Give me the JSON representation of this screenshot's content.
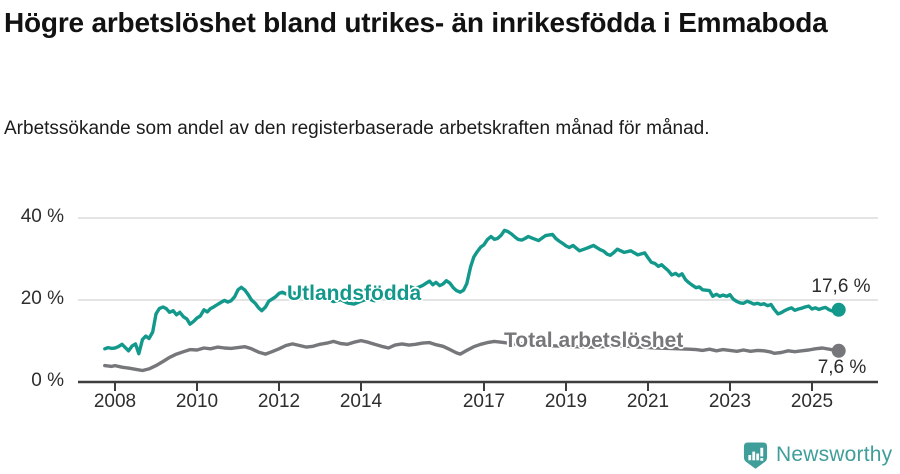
{
  "header": {
    "title": "Högre arbetslöshet bland utrikes- än inrikesfödda i Emmaboda",
    "subtitle": "Arbetssökande som andel av den registerbaserade arbetskraften månad för månad."
  },
  "chart_data": {
    "type": "line",
    "title": "Högre arbetslöshet bland utrikes- än inrikesfödda i Emmaboda",
    "subtitle": "Arbetssökande som andel av den registerbaserade arbetskraften månad för månad.",
    "grid": "horizontal",
    "legend_position": "inline-labels",
    "x_axis": {
      "range": [
        2007.7,
        2025.9
      ],
      "ticks": [
        2008,
        2010,
        2012,
        2014,
        2017,
        2019,
        2021,
        2023,
        2025
      ]
    },
    "y_axis": {
      "unit": "%",
      "range": [
        0,
        42
      ],
      "ticks": [
        {
          "value": 0,
          "label": "0 %"
        },
        {
          "value": 20,
          "label": "20 %"
        },
        {
          "value": 40,
          "label": "40 %"
        }
      ]
    },
    "colors": {
      "utlandsfodda": "#13998c",
      "total": "#76777a",
      "grid": "#dcdcdc",
      "axis": "#3d3d3d",
      "text": "#2e2e2e"
    },
    "series": [
      {
        "name": "Utlandsfödda",
        "color": "#13998c",
        "end_label": "17,6 %",
        "end_value": 17.6,
        "points": [
          [
            2007.75,
            8.1
          ],
          [
            2007.83,
            8.4
          ],
          [
            2007.92,
            8.2
          ],
          [
            2008.0,
            8.3
          ],
          [
            2008.08,
            8.6
          ],
          [
            2008.17,
            9.2
          ],
          [
            2008.25,
            8.4
          ],
          [
            2008.33,
            7.6
          ],
          [
            2008.42,
            8.8
          ],
          [
            2008.5,
            9.3
          ],
          [
            2008.58,
            6.9
          ],
          [
            2008.67,
            10.4
          ],
          [
            2008.75,
            11.2
          ],
          [
            2008.83,
            10.6
          ],
          [
            2008.92,
            12.2
          ],
          [
            2009.0,
            16.6
          ],
          [
            2009.08,
            17.9
          ],
          [
            2009.17,
            18.3
          ],
          [
            2009.25,
            17.9
          ],
          [
            2009.33,
            17.0
          ],
          [
            2009.42,
            17.4
          ],
          [
            2009.5,
            16.4
          ],
          [
            2009.58,
            17.0
          ],
          [
            2009.67,
            15.9
          ],
          [
            2009.75,
            15.4
          ],
          [
            2009.83,
            14.1
          ],
          [
            2009.92,
            14.8
          ],
          [
            2010.0,
            15.6
          ],
          [
            2010.08,
            16.1
          ],
          [
            2010.17,
            17.6
          ],
          [
            2010.25,
            17.1
          ],
          [
            2010.33,
            17.9
          ],
          [
            2010.42,
            18.4
          ],
          [
            2010.5,
            18.9
          ],
          [
            2010.58,
            19.4
          ],
          [
            2010.67,
            19.9
          ],
          [
            2010.75,
            19.5
          ],
          [
            2010.83,
            19.8
          ],
          [
            2010.92,
            20.8
          ],
          [
            2011.0,
            22.5
          ],
          [
            2011.08,
            23.1
          ],
          [
            2011.17,
            22.4
          ],
          [
            2011.25,
            21.3
          ],
          [
            2011.33,
            20.0
          ],
          [
            2011.42,
            19.2
          ],
          [
            2011.5,
            18.1
          ],
          [
            2011.58,
            17.4
          ],
          [
            2011.67,
            18.3
          ],
          [
            2011.75,
            19.7
          ],
          [
            2011.83,
            20.2
          ],
          [
            2011.92,
            20.8
          ],
          [
            2012.0,
            21.6
          ],
          [
            2012.08,
            21.9
          ],
          [
            2012.17,
            21.5
          ],
          [
            2012.33,
            21.9
          ],
          [
            2012.5,
            21.1
          ],
          [
            2012.67,
            20.4
          ],
          [
            2012.83,
            20.9
          ],
          [
            2013.0,
            21.3
          ],
          [
            2013.17,
            20.3
          ],
          [
            2013.33,
            19.6
          ],
          [
            2013.5,
            20.1
          ],
          [
            2013.67,
            19.3
          ],
          [
            2013.83,
            19.0
          ],
          [
            2014.0,
            19.7
          ],
          [
            2014.17,
            20.3
          ],
          [
            2014.33,
            19.8
          ],
          [
            2014.5,
            20.7
          ],
          [
            2014.67,
            21.3
          ],
          [
            2014.83,
            21.9
          ],
          [
            2015.0,
            22.6
          ],
          [
            2015.17,
            23.3
          ],
          [
            2015.33,
            22.8
          ],
          [
            2015.5,
            23.5
          ],
          [
            2015.67,
            24.6
          ],
          [
            2015.75,
            23.7
          ],
          [
            2015.83,
            24.3
          ],
          [
            2015.92,
            23.5
          ],
          [
            2016.0,
            23.9
          ],
          [
            2016.08,
            24.7
          ],
          [
            2016.17,
            24.1
          ],
          [
            2016.25,
            23.0
          ],
          [
            2016.33,
            22.3
          ],
          [
            2016.42,
            21.9
          ],
          [
            2016.5,
            22.4
          ],
          [
            2016.58,
            24.0
          ],
          [
            2016.67,
            28.0
          ],
          [
            2016.75,
            30.5
          ],
          [
            2016.83,
            31.7
          ],
          [
            2016.92,
            32.9
          ],
          [
            2017.0,
            33.5
          ],
          [
            2017.08,
            34.7
          ],
          [
            2017.17,
            35.5
          ],
          [
            2017.25,
            34.8
          ],
          [
            2017.33,
            35.0
          ],
          [
            2017.42,
            35.8
          ],
          [
            2017.5,
            37.0
          ],
          [
            2017.58,
            36.7
          ],
          [
            2017.67,
            36.1
          ],
          [
            2017.75,
            35.4
          ],
          [
            2017.83,
            34.8
          ],
          [
            2017.92,
            34.6
          ],
          [
            2018.0,
            35.0
          ],
          [
            2018.08,
            35.5
          ],
          [
            2018.17,
            35.1
          ],
          [
            2018.33,
            34.5
          ],
          [
            2018.5,
            35.7
          ],
          [
            2018.67,
            36.0
          ],
          [
            2018.75,
            35.0
          ],
          [
            2018.83,
            34.4
          ],
          [
            2018.92,
            33.8
          ],
          [
            2019.0,
            33.2
          ],
          [
            2019.08,
            32.8
          ],
          [
            2019.17,
            33.3
          ],
          [
            2019.33,
            32.0
          ],
          [
            2019.5,
            32.6
          ],
          [
            2019.67,
            33.3
          ],
          [
            2019.83,
            32.3
          ],
          [
            2019.92,
            31.9
          ],
          [
            2020.0,
            31.2
          ],
          [
            2020.08,
            30.9
          ],
          [
            2020.17,
            31.6
          ],
          [
            2020.25,
            32.4
          ],
          [
            2020.42,
            31.6
          ],
          [
            2020.58,
            32.0
          ],
          [
            2020.75,
            31.0
          ],
          [
            2020.92,
            31.5
          ],
          [
            2021.0,
            30.3
          ],
          [
            2021.08,
            29.2
          ],
          [
            2021.17,
            28.9
          ],
          [
            2021.25,
            28.2
          ],
          [
            2021.33,
            28.6
          ],
          [
            2021.42,
            27.8
          ],
          [
            2021.5,
            27.1
          ],
          [
            2021.58,
            26.1
          ],
          [
            2021.67,
            26.5
          ],
          [
            2021.75,
            25.9
          ],
          [
            2021.83,
            26.4
          ],
          [
            2021.92,
            24.9
          ],
          [
            2022.0,
            24.2
          ],
          [
            2022.08,
            23.6
          ],
          [
            2022.17,
            23.0
          ],
          [
            2022.25,
            23.2
          ],
          [
            2022.33,
            22.5
          ],
          [
            2022.5,
            22.3
          ],
          [
            2022.58,
            20.9
          ],
          [
            2022.67,
            21.4
          ],
          [
            2022.75,
            20.9
          ],
          [
            2022.83,
            21.2
          ],
          [
            2022.92,
            20.9
          ],
          [
            2023.0,
            21.3
          ],
          [
            2023.08,
            20.2
          ],
          [
            2023.17,
            19.6
          ],
          [
            2023.25,
            19.3
          ],
          [
            2023.33,
            19.2
          ],
          [
            2023.42,
            19.7
          ],
          [
            2023.5,
            19.4
          ],
          [
            2023.58,
            19.0
          ],
          [
            2023.67,
            19.2
          ],
          [
            2023.75,
            18.9
          ],
          [
            2023.83,
            19.1
          ],
          [
            2023.92,
            18.6
          ],
          [
            2024.0,
            18.9
          ],
          [
            2024.08,
            17.7
          ],
          [
            2024.17,
            16.6
          ],
          [
            2024.25,
            16.9
          ],
          [
            2024.33,
            17.4
          ],
          [
            2024.42,
            17.8
          ],
          [
            2024.5,
            18.1
          ],
          [
            2024.58,
            17.5
          ],
          [
            2024.67,
            17.8
          ],
          [
            2024.75,
            18.0
          ],
          [
            2024.83,
            18.3
          ],
          [
            2024.92,
            18.5
          ],
          [
            2025.0,
            17.8
          ],
          [
            2025.08,
            18.1
          ],
          [
            2025.17,
            17.7
          ],
          [
            2025.25,
            18.0
          ],
          [
            2025.33,
            18.2
          ],
          [
            2025.42,
            17.6
          ],
          [
            2025.5,
            17.3
          ],
          [
            2025.58,
            17.4
          ],
          [
            2025.65,
            17.6
          ]
        ]
      },
      {
        "name": "Total arbetslöshet",
        "color": "#76777a",
        "end_label": "7,6 %",
        "end_value": 7.6,
        "points": [
          [
            2007.75,
            4.0
          ],
          [
            2007.92,
            3.8
          ],
          [
            2008.0,
            4.0
          ],
          [
            2008.17,
            3.6
          ],
          [
            2008.33,
            3.4
          ],
          [
            2008.5,
            3.1
          ],
          [
            2008.67,
            2.8
          ],
          [
            2008.83,
            3.2
          ],
          [
            2009.0,
            4.0
          ],
          [
            2009.17,
            5.0
          ],
          [
            2009.33,
            6.0
          ],
          [
            2009.5,
            6.8
          ],
          [
            2009.67,
            7.4
          ],
          [
            2009.83,
            7.9
          ],
          [
            2010.0,
            7.8
          ],
          [
            2010.17,
            8.3
          ],
          [
            2010.33,
            8.1
          ],
          [
            2010.5,
            8.5
          ],
          [
            2010.67,
            8.3
          ],
          [
            2010.83,
            8.2
          ],
          [
            2011.0,
            8.4
          ],
          [
            2011.17,
            8.6
          ],
          [
            2011.33,
            8.1
          ],
          [
            2011.5,
            7.3
          ],
          [
            2011.67,
            6.8
          ],
          [
            2011.83,
            7.4
          ],
          [
            2012.0,
            8.1
          ],
          [
            2012.17,
            8.9
          ],
          [
            2012.33,
            9.3
          ],
          [
            2012.5,
            8.9
          ],
          [
            2012.67,
            8.5
          ],
          [
            2012.83,
            8.7
          ],
          [
            2013.0,
            9.2
          ],
          [
            2013.17,
            9.5
          ],
          [
            2013.33,
            9.9
          ],
          [
            2013.5,
            9.4
          ],
          [
            2013.67,
            9.2
          ],
          [
            2013.83,
            9.7
          ],
          [
            2014.0,
            10.1
          ],
          [
            2014.17,
            9.7
          ],
          [
            2014.33,
            9.2
          ],
          [
            2014.5,
            8.7
          ],
          [
            2014.67,
            8.3
          ],
          [
            2014.83,
            9.0
          ],
          [
            2015.0,
            9.3
          ],
          [
            2015.17,
            9.0
          ],
          [
            2015.33,
            9.2
          ],
          [
            2015.5,
            9.5
          ],
          [
            2015.67,
            9.6
          ],
          [
            2015.83,
            9.1
          ],
          [
            2016.0,
            8.7
          ],
          [
            2016.17,
            7.9
          ],
          [
            2016.33,
            7.1
          ],
          [
            2016.42,
            6.8
          ],
          [
            2016.58,
            7.7
          ],
          [
            2016.75,
            8.6
          ],
          [
            2016.92,
            9.2
          ],
          [
            2017.08,
            9.6
          ],
          [
            2017.25,
            9.9
          ],
          [
            2017.42,
            9.7
          ],
          [
            2017.58,
            9.5
          ],
          [
            2017.75,
            9.3
          ],
          [
            2018.0,
            9.4
          ],
          [
            2018.25,
            9.1
          ],
          [
            2018.5,
            8.9
          ],
          [
            2018.75,
            8.8
          ],
          [
            2019.0,
            8.7
          ],
          [
            2019.25,
            8.6
          ],
          [
            2019.5,
            8.5
          ],
          [
            2019.75,
            8.5
          ],
          [
            2020.0,
            8.7
          ],
          [
            2020.25,
            8.9
          ],
          [
            2020.5,
            8.7
          ],
          [
            2020.75,
            8.5
          ],
          [
            2021.0,
            8.4
          ],
          [
            2021.25,
            8.3
          ],
          [
            2021.5,
            8.2
          ],
          [
            2021.75,
            8.1
          ],
          [
            2022.0,
            8.0
          ],
          [
            2022.17,
            7.9
          ],
          [
            2022.33,
            7.7
          ],
          [
            2022.5,
            8.0
          ],
          [
            2022.67,
            7.6
          ],
          [
            2022.83,
            7.9
          ],
          [
            2023.0,
            7.7
          ],
          [
            2023.17,
            7.5
          ],
          [
            2023.33,
            7.8
          ],
          [
            2023.5,
            7.5
          ],
          [
            2023.67,
            7.7
          ],
          [
            2023.83,
            7.6
          ],
          [
            2024.0,
            7.3
          ],
          [
            2024.08,
            7.0
          ],
          [
            2024.25,
            7.2
          ],
          [
            2024.42,
            7.6
          ],
          [
            2024.58,
            7.4
          ],
          [
            2024.75,
            7.6
          ],
          [
            2024.92,
            7.8
          ],
          [
            2025.08,
            8.1
          ],
          [
            2025.25,
            8.3
          ],
          [
            2025.42,
            8.0
          ],
          [
            2025.58,
            7.7
          ],
          [
            2025.65,
            7.6
          ]
        ]
      }
    ]
  },
  "footer": {
    "brand": "Newsworthy",
    "brand_color": "#3f9d9a",
    "logo_icon": "newsworthy-pin-bar-chart-icon"
  }
}
